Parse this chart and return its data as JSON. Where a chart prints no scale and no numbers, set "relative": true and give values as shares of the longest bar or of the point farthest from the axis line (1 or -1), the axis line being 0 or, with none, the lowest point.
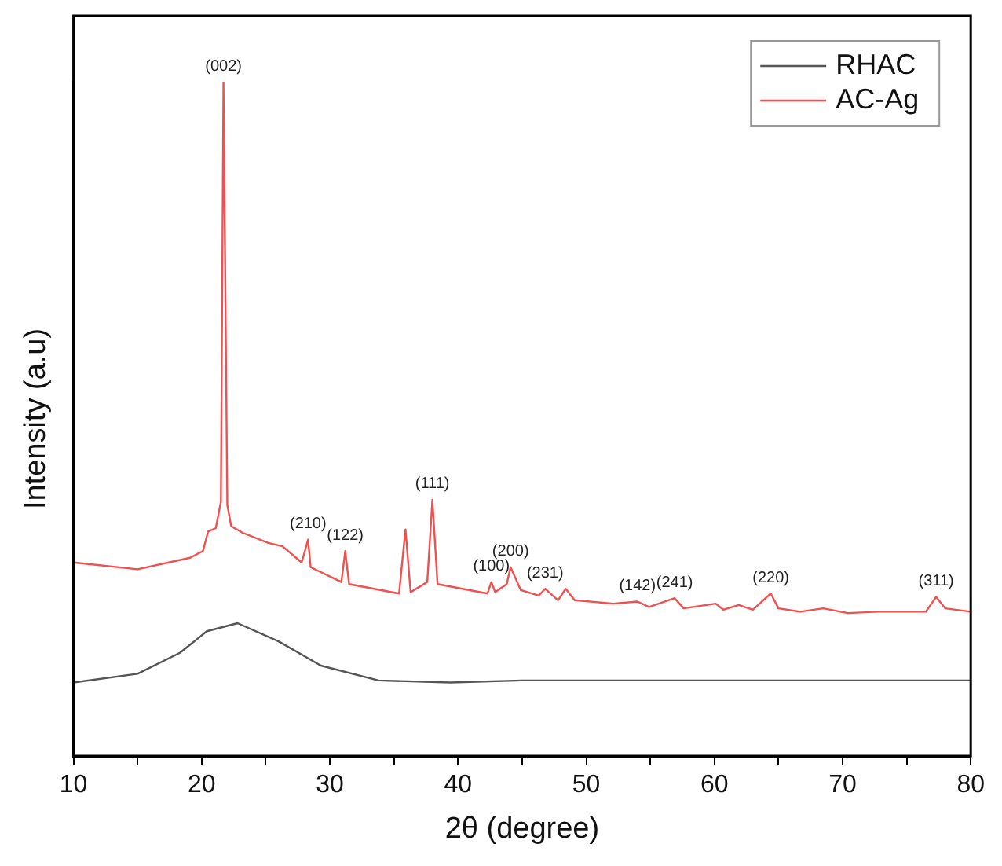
{
  "chart_data": {
    "type": "line",
    "xlabel": "2θ (degree)",
    "ylabel": "Intensity (a.u)",
    "relative": true,
    "xlim": [
      10,
      80
    ],
    "xticks": [
      10,
      {
        "value": 15,
        "label": null
      },
      20,
      {
        "value": 25,
        "label": null
      },
      30,
      {
        "value": 35,
        "label": null
      },
      40,
      {
        "value": 45,
        "label": null
      },
      50,
      {
        "value": 55,
        "label": null
      },
      60,
      {
        "value": 65,
        "label": null
      },
      70,
      {
        "value": 75,
        "label": null
      },
      80
    ],
    "grid": false,
    "legend": "top right",
    "marker": "none",
    "line_style": "solid",
    "series": [
      {
        "name": "RHAC",
        "color": "#555555",
        "x": [
          10,
          15,
          18.3,
          20.4,
          22.8,
          26,
          29.3,
          33.8,
          39.4,
          45,
          50,
          55,
          60,
          65,
          70,
          75,
          80
        ],
        "values": [
          0.109,
          0.122,
          0.153,
          0.185,
          0.197,
          0.17,
          0.134,
          0.112,
          0.109,
          0.112,
          0.112,
          0.112,
          0.112,
          0.112,
          0.112,
          0.112,
          0.112
        ]
      },
      {
        "name": "AC-Ag",
        "color": "#f05050",
        "x": [
          10,
          15,
          19.1,
          20.1,
          20.5,
          21.1,
          21.5,
          21.7,
          22,
          22.3,
          23.2,
          25.2,
          26.3,
          27.8,
          28.3,
          28.5,
          30.9,
          31.2,
          31.5,
          35.4,
          35.9,
          36.3,
          37.6,
          38,
          38.4,
          42.3,
          42.6,
          42.9,
          43.8,
          44.1,
          44.9,
          46.3,
          46.8,
          47.8,
          48.4,
          49.1,
          52.1,
          54,
          54.9,
          56.9,
          57.6,
          60.1,
          60.7,
          61.9,
          63,
          64.4,
          65,
          66.7,
          68.5,
          70.4,
          72.8,
          74,
          76.5,
          77.3,
          78,
          80
        ],
        "values": [
          0.287,
          0.277,
          0.294,
          0.304,
          0.333,
          0.338,
          0.377,
          1.0,
          0.372,
          0.341,
          0.331,
          0.316,
          0.311,
          0.287,
          0.321,
          0.28,
          0.258,
          0.304,
          0.255,
          0.241,
          0.336,
          0.243,
          0.258,
          0.38,
          0.255,
          0.241,
          0.258,
          0.243,
          0.255,
          0.28,
          0.246,
          0.238,
          0.248,
          0.231,
          0.248,
          0.231,
          0.226,
          0.229,
          0.221,
          0.234,
          0.219,
          0.226,
          0.217,
          0.224,
          0.217,
          0.241,
          0.219,
          0.214,
          0.219,
          0.212,
          0.214,
          0.214,
          0.214,
          0.236,
          0.219,
          0.214
        ]
      }
    ],
    "annotations": [
      {
        "text": "(002)",
        "x": 21.7,
        "y": 1.0
      },
      {
        "text": "(210)",
        "x": 28.3,
        "y": 0.321
      },
      {
        "text": "(122)",
        "x": 31.2,
        "y": 0.304
      },
      {
        "text": "(111)",
        "x": 38,
        "y": 0.38
      },
      {
        "text": "(100)",
        "x": 42.6,
        "y": 0.258
      },
      {
        "text": "(200)",
        "x": 44.1,
        "y": 0.28
      },
      {
        "text": "(231)",
        "x": 46.8,
        "y": 0.248
      },
      {
        "text": "(142)",
        "x": 54,
        "y": 0.229
      },
      {
        "text": "(241)",
        "x": 56.9,
        "y": 0.234
      },
      {
        "text": "(220)",
        "x": 64.4,
        "y": 0.241
      },
      {
        "text": "(311)",
        "x": 77.3,
        "y": 0.236
      }
    ]
  }
}
